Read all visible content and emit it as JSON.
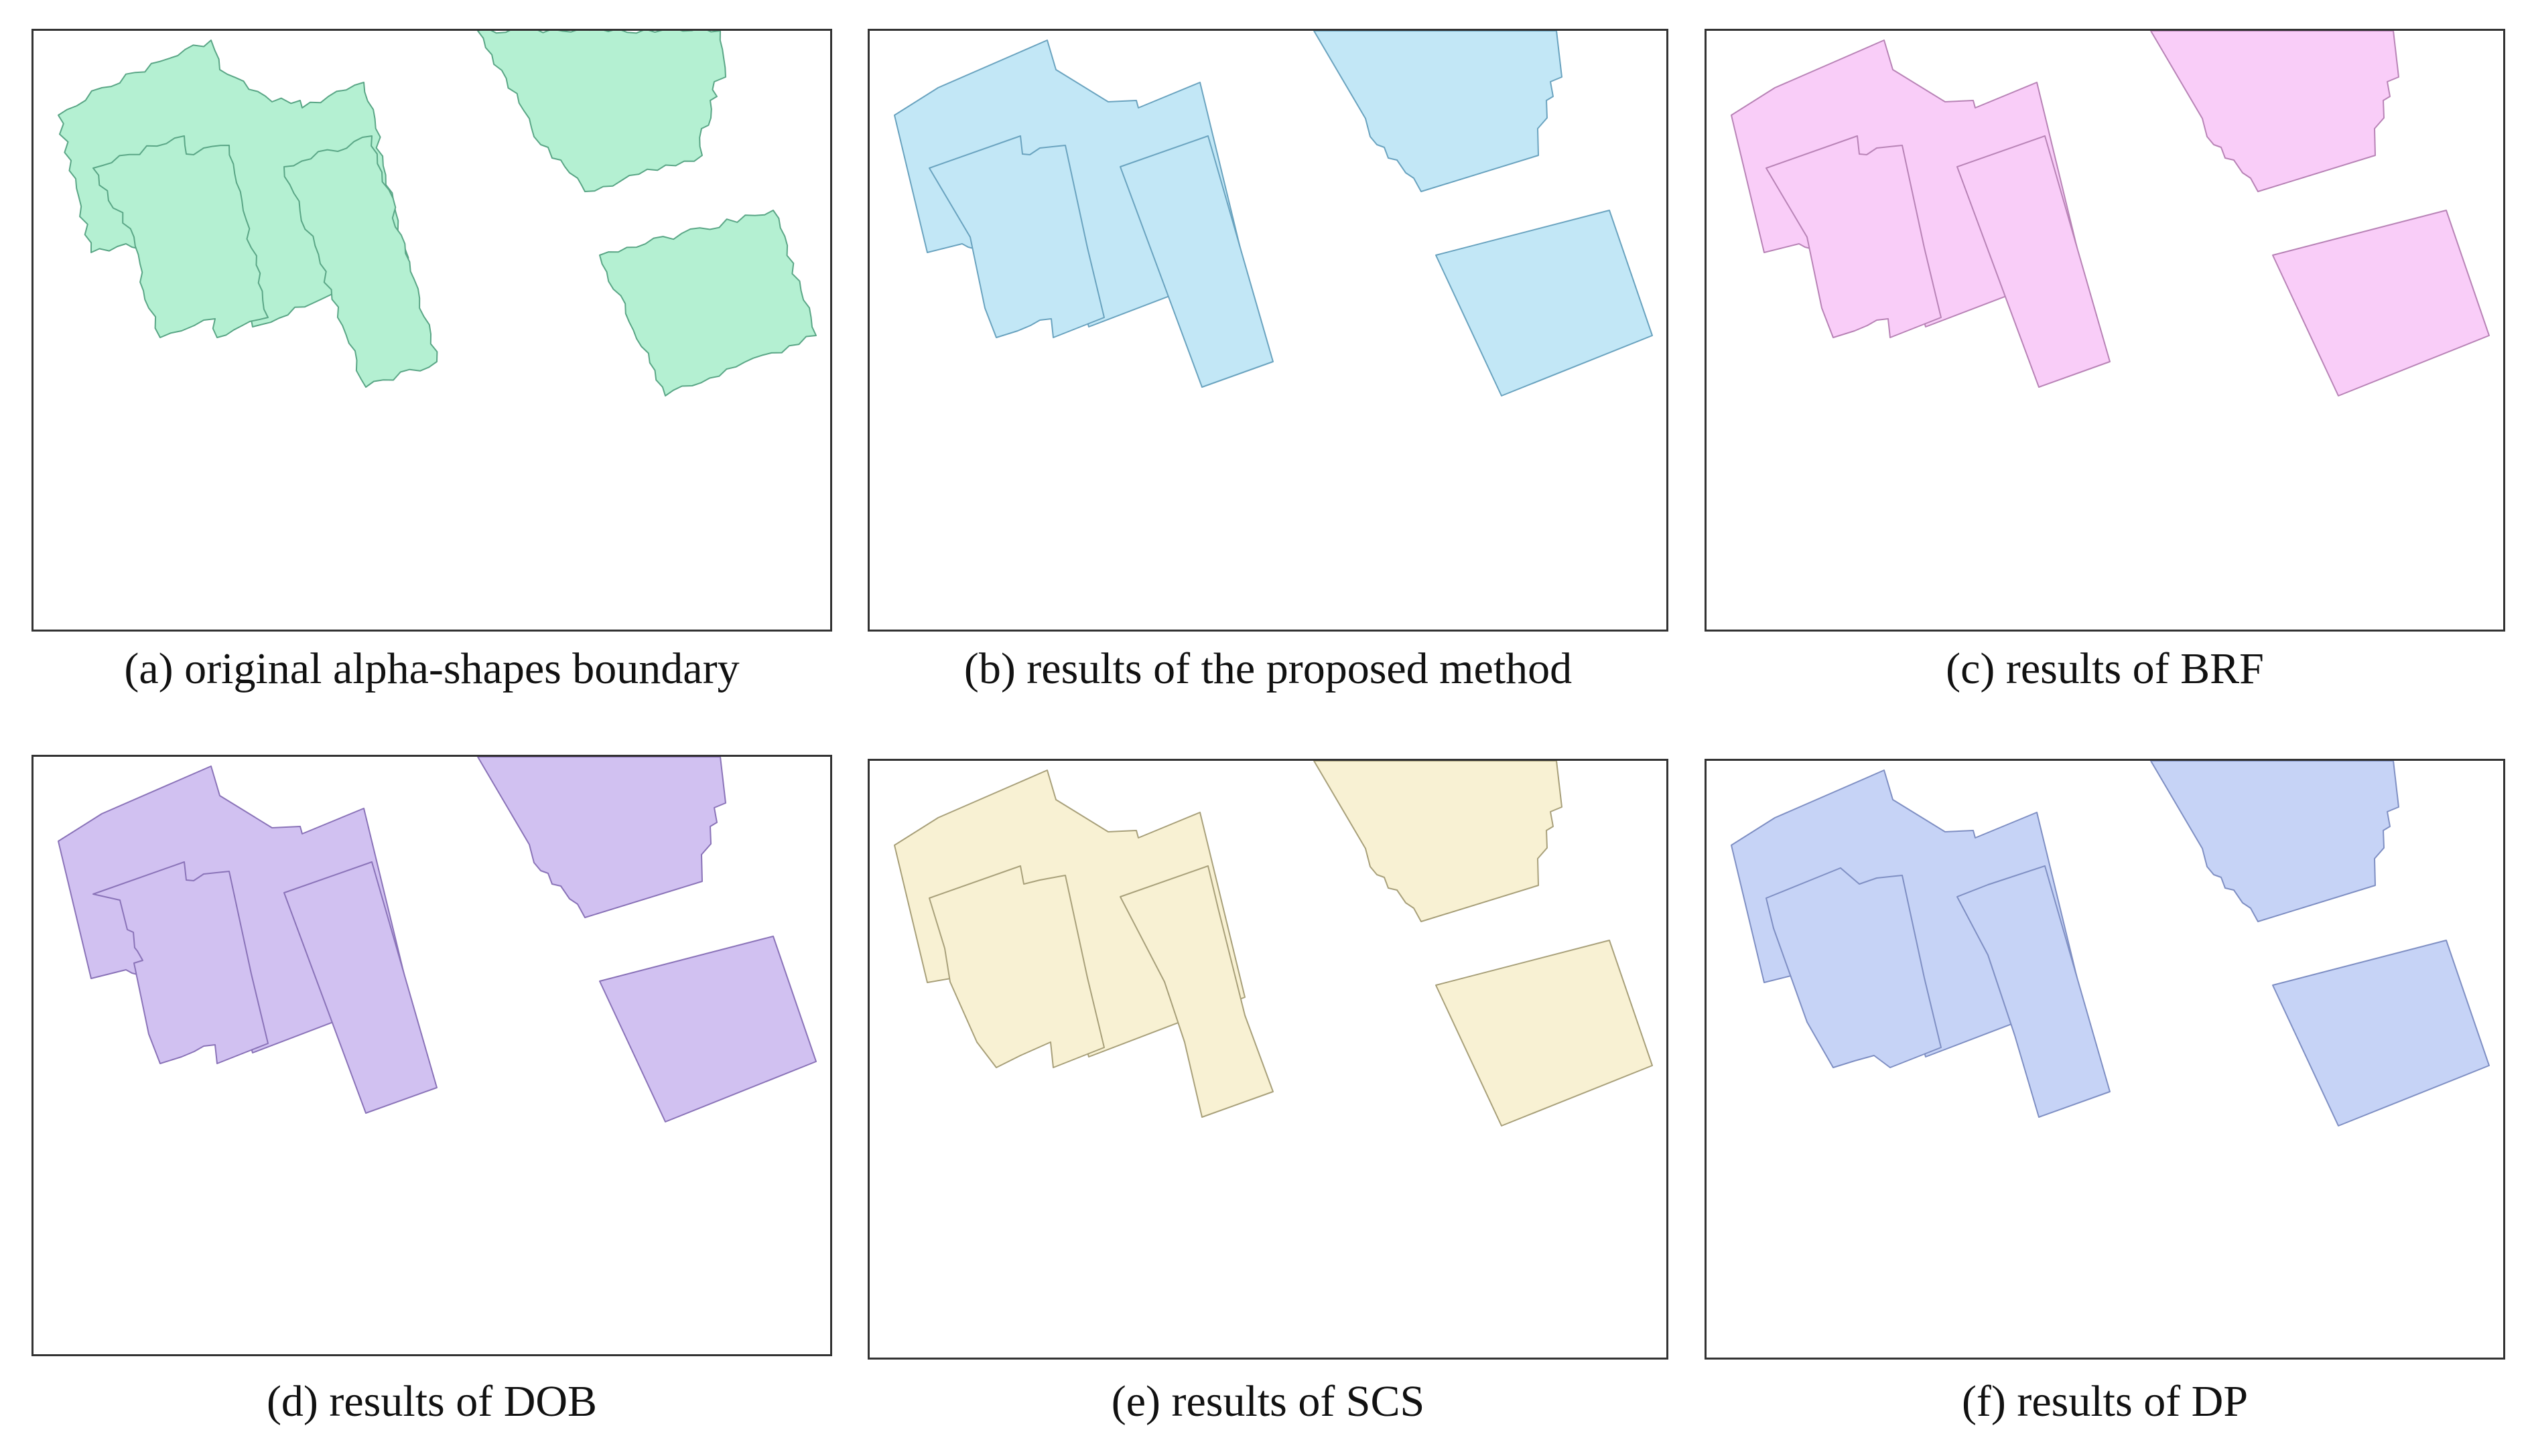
{
  "figure": {
    "panels": [
      {
        "id": "a",
        "caption": "(a) original alpha-shapes boundary",
        "fill": "#b4f0d2",
        "stroke": "#5aa686",
        "style": "alpha"
      },
      {
        "id": "b",
        "caption": "(b) results of the proposed method",
        "fill": "#c2e7f6",
        "stroke": "#6aa3bf",
        "style": "regular"
      },
      {
        "id": "c",
        "caption": "(c) results of BRF",
        "fill": "#f9cdf8",
        "stroke": "#b883b6",
        "style": "regular"
      },
      {
        "id": "d",
        "caption": "(d) results of DOB",
        "fill": "#d1c1f1",
        "stroke": "#8a73b8",
        "style": "dob"
      },
      {
        "id": "e",
        "caption": "(e) results of SCS",
        "fill": "#f8f1d3",
        "stroke": "#a8a07a",
        "style": "scs"
      },
      {
        "id": "f",
        "caption": "(f) results of DP",
        "fill": "#c6d3f6",
        "stroke": "#7f8fc3",
        "style": "dp"
      }
    ]
  }
}
